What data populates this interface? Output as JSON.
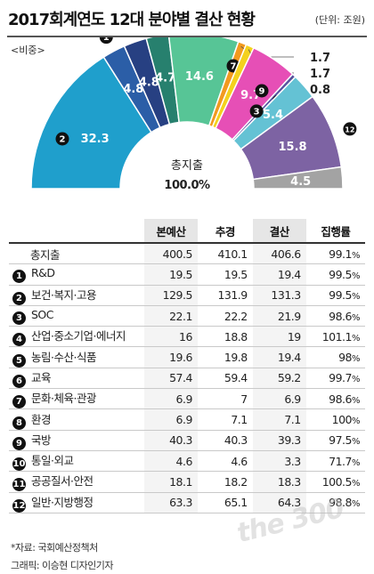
{
  "header": {
    "title": "2017회계연도 12대 분야별 결산 현황",
    "unit": "(단위: 조원)",
    "share_label": "<비중>"
  },
  "center": {
    "label": "총지출",
    "value": "100.0%"
  },
  "chart_data": {
    "type": "pie",
    "subtype": "half-donut",
    "title": "2017회계연도 12대 분야별 결산 현황",
    "unit": "조원",
    "value_label": "비중 (%)",
    "slices": [
      {
        "num": "2",
        "value": 32.3,
        "color": "#1f9fcc"
      },
      {
        "num": "1",
        "value": 4.8,
        "color": "#2b5ea7"
      },
      {
        "num": "5",
        "value": 4.8,
        "color": "#274082"
      },
      {
        "num": "4",
        "value": 4.7,
        "color": "#27806e"
      },
      {
        "num": "6",
        "value": 14.6,
        "color": "#57c596"
      },
      {
        "num": "7",
        "value": 1.7,
        "color": "#f29a1f"
      },
      {
        "num": "8",
        "value": 1.7,
        "color": "#f4d11e"
      },
      {
        "num": "9",
        "value": 9.7,
        "color": "#e64fb6"
      },
      {
        "num": "10",
        "value": 0.8,
        "color": "#5552a0"
      },
      {
        "num": "3",
        "value": 5.4,
        "color": "#64c2d4"
      },
      {
        "num": "12",
        "value": 15.8,
        "color": "#7d63a3"
      },
      {
        "num": "11",
        "value": 4.5,
        "color": "#a3a3a3"
      }
    ]
  },
  "table": {
    "headers": [
      "",
      "본예산",
      "추경",
      "결산",
      "집행률"
    ],
    "total": {
      "name": "총지출",
      "budget": "400.5",
      "supp": "410.1",
      "settle": "406.6",
      "rate": "99.1",
      "pct": "%"
    },
    "rows": [
      {
        "num": "1",
        "name": "R&D",
        "budget": "19.5",
        "supp": "19.5",
        "settle": "19.4",
        "rate": "99.5",
        "pct": "%"
      },
      {
        "num": "2",
        "name": "보건·복지·고용",
        "budget": "129.5",
        "supp": "131.9",
        "settle": "131.3",
        "rate": "99.5",
        "pct": "%"
      },
      {
        "num": "3",
        "name": "SOC",
        "budget": "22.1",
        "supp": "22.2",
        "settle": "21.9",
        "rate": "98.6",
        "pct": "%"
      },
      {
        "num": "4",
        "name": "산업·중소기업·에너지",
        "budget": "16",
        "supp": "18.8",
        "settle": "19",
        "rate": "101.1",
        "pct": "%"
      },
      {
        "num": "5",
        "name": "농림·수산·식품",
        "budget": "19.6",
        "supp": "19.8",
        "settle": "19.4",
        "rate": "98",
        "pct": "%"
      },
      {
        "num": "6",
        "name": "교육",
        "budget": "57.4",
        "supp": "59.4",
        "settle": "59.2",
        "rate": "99.7",
        "pct": "%"
      },
      {
        "num": "7",
        "name": "문화·체육·관광",
        "budget": "6.9",
        "supp": "7",
        "settle": "6.9",
        "rate": "98.6",
        "pct": "%"
      },
      {
        "num": "8",
        "name": "환경",
        "budget": "6.9",
        "supp": "7.1",
        "settle": "7.1",
        "rate": "100",
        "pct": "%"
      },
      {
        "num": "9",
        "name": "국방",
        "budget": "40.3",
        "supp": "40.3",
        "settle": "39.3",
        "rate": "97.5",
        "pct": "%"
      },
      {
        "num": "10",
        "name": "통일·외교",
        "budget": "4.6",
        "supp": "4.6",
        "settle": "3.3",
        "rate": "71.7",
        "pct": "%"
      },
      {
        "num": "11",
        "name": "공공질서·안전",
        "budget": "18.1",
        "supp": "18.2",
        "settle": "18.3",
        "rate": "100.5",
        "pct": "%"
      },
      {
        "num": "12",
        "name": "일반·지방행정",
        "budget": "63.3",
        "supp": "65.1",
        "settle": "64.3",
        "rate": "98.8",
        "pct": "%"
      }
    ]
  },
  "footer": {
    "source": "*자료: 국회예산정책처",
    "credit": "그래픽: 이승현 디자인기자"
  },
  "watermark": "the 300"
}
